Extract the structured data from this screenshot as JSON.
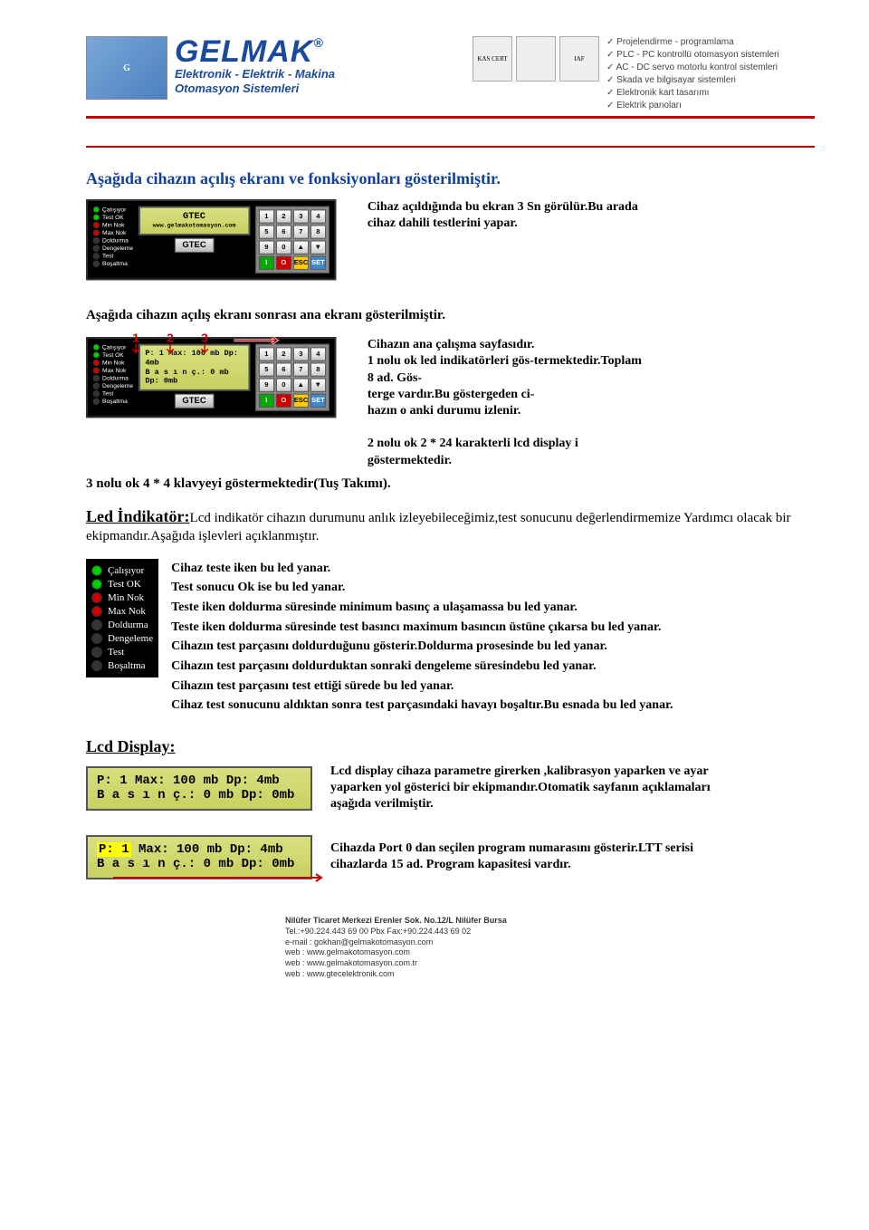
{
  "header": {
    "brand_name": "GELMAK",
    "brand_sub1": "Elektronik - Elektrik - Makina",
    "brand_sub2": "Otomasyon Sistemleri",
    "cert1": "KAS CERT",
    "cert2": "",
    "cert3": "IAF",
    "services": [
      "Projelendirme - programlama",
      "PLC - PC  kontrollü otomasyon sistemleri",
      "AC - DC  servo motorlu kontrol sistemleri",
      "Skada ve bilgisayar sistemleri",
      "Elektronik kart tasarımı",
      "Elektrik panoları"
    ]
  },
  "title1": "Aşağıda cihazın açılış ekranı ve fonksiyonları gösterilmiştir.",
  "device1": {
    "lcd_line1": "GTEC",
    "lcd_line2": "www.gelmakotomasyon.com",
    "badge": "GTEC"
  },
  "open_text": {
    "line1": "Cihaz açıldığında bu ekran 3 Sn görülür.Bu arada cihaz dahili testlerini yapar."
  },
  "title2": "Aşağıda cihazın açılış ekranı sonrası ana ekranı gösterilmiştir.",
  "device2": {
    "lcd_line1": "P: 1  Max: 100 mb Dp:   4mb",
    "lcd_line2": "B a s ı n ç.:    0 mb Dp:   0mb",
    "badge": "GTEC"
  },
  "main_text": {
    "a": "Cihazın ana çalışma sayfasıdır.",
    "b": "1 nolu ok led indikatörleri gös-termektedir.Toplam 8 ad. Gös-",
    "c": "terge vardır.Bu göstergeden ci-",
    "d": "hazın o anki durumu izlenir.",
    "e": "2 nolu ok 2 * 24 karakterli lcd display i göstermektedir.",
    "f": "3 nolu ok 4 * 4  klavyeyi göstermektedir(Tuş Takımı)."
  },
  "led_section": {
    "heading": "Led İndikatör:",
    "intro": "Lcd indikatör cihazın durumunu anlık izleyebileceğimiz,test sonucunu değerlendirmemize Yardımcı olacak bir ekipmandır.Aşağıda işlevleri açıklanmıştır.",
    "rows": [
      {
        "color": "green",
        "label": "Çalışıyor",
        "desc": "Cihaz teste iken bu led yanar."
      },
      {
        "color": "green",
        "label": "Test OK",
        "desc": "Test sonucu Ok ise bu led yanar."
      },
      {
        "color": "red",
        "label": "Min Nok",
        "desc": "Teste iken doldurma süresinde minimum basınç a ulaşamassa bu led yanar."
      },
      {
        "color": "red",
        "label": "Max Nok",
        "desc": "Teste iken doldurma süresinde test basıncı maximum basıncın üstüne çıkarsa bu led yanar."
      },
      {
        "color": "off",
        "label": "Doldurma",
        "desc": "Cihazın test parçasını doldurduğunu gösterir.Doldurma prosesinde bu led yanar."
      },
      {
        "color": "off",
        "label": "Dengeleme",
        "desc": "Cihazın test parçasını doldurduktan sonraki dengeleme süresindebu led yanar."
      },
      {
        "color": "off",
        "label": "Test",
        "desc": "Cihazın test parçasını test ettiği sürede bu led yanar."
      },
      {
        "color": "off",
        "label": "Boşaltma",
        "desc": "Cihaz test sonucunu aldıktan sonra test parçasındaki  havayı boşaltır.Bu esnada bu led yanar."
      }
    ]
  },
  "lcd_section": {
    "heading": "Lcd Display:",
    "lcd_line1": "P: 1  Max: 100 mb Dp:   4mb",
    "lcd_line2": "B a s ı n ç.:    0 mb Dp:   0mb",
    "desc1": "Lcd display cihaza parametre girerken ,kalibrasyon yaparken ve ayar yaparken yol gösterici bir ekipmandır.Otomatik sayfanın açıklamaları aşağıda verilmiştir.",
    "desc2": "Cihazda Port 0 dan seçilen program numarasını gösterir.LTT serisi cihazlarda 15 ad. Program kapasitesi vardır."
  },
  "leds": [
    {
      "color": "green",
      "label": "Çalışıyor"
    },
    {
      "color": "green",
      "label": "Test OK"
    },
    {
      "color": "red",
      "label": "Min Nok"
    },
    {
      "color": "red",
      "label": "Max Nok"
    },
    {
      "color": "off",
      "label": "Doldurma"
    },
    {
      "color": "off",
      "label": "Dengeleme"
    },
    {
      "color": "off",
      "label": "Test"
    },
    {
      "color": "off",
      "label": "Boşaltma"
    }
  ],
  "keypad": [
    "1",
    "2",
    "3",
    "4",
    "5",
    "6",
    "7",
    "8",
    "9",
    "0",
    "▲",
    "▼",
    "I",
    "O",
    "ESC",
    "SET"
  ],
  "keypad_colors": [
    "",
    "",
    "",
    "",
    "",
    "",
    "",
    "",
    "",
    "",
    "",
    "",
    "green",
    "red",
    "yellow",
    "blue"
  ],
  "footer": {
    "l1": "Nilüfer Ticaret Merkezi Erenler Sok. No.12/L Nilüfer Bursa",
    "l2": "Tel.:+90.224.443 69 00 Pbx Fax:+90.224.443 69 02",
    "l3": "e-mail : gokhan@gelmakotomasyon.com",
    "l4": "web    : www.gelmakotomasyon.com",
    "l5": "web    : www.gelmakotomasyon.com.tr",
    "l6": "web    : www.gtecelektronik.com"
  }
}
